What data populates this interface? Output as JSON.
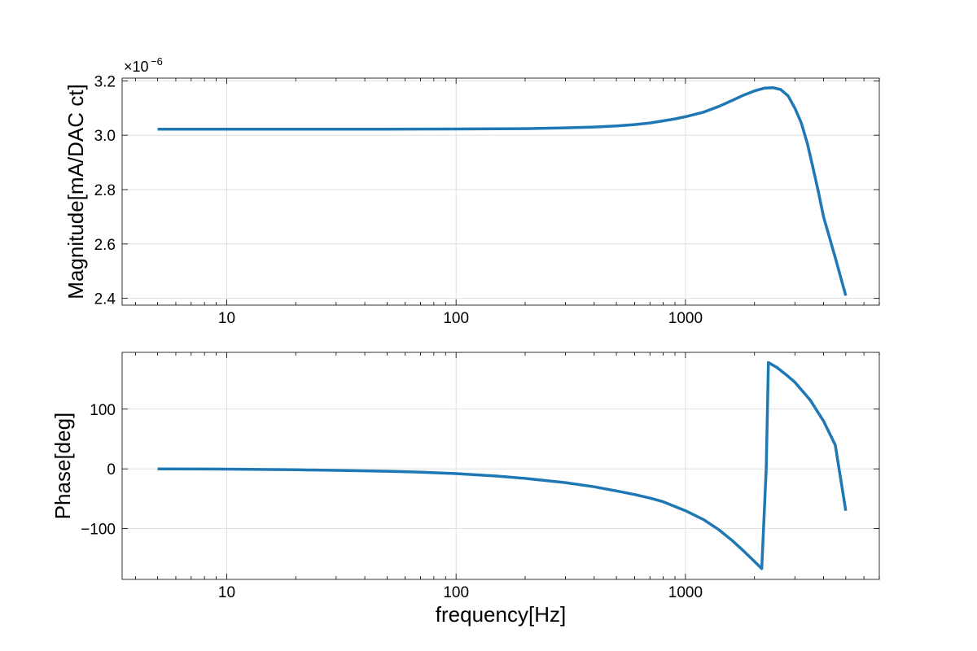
{
  "chart_data": [
    {
      "type": "line",
      "xscale": "log",
      "xlim": [
        3.5,
        7000
      ],
      "ylim": [
        2.375,
        3.21
      ],
      "ylabel": "Magnitude[mA/DAC ct]",
      "xlabel": "",
      "offset_text": "×10",
      "offset_exponent": "−6",
      "grid": true,
      "x_ticks": [
        {
          "value": 10,
          "label": "10"
        },
        {
          "value": 100,
          "label": "100"
        },
        {
          "value": 1000,
          "label": "1000"
        }
      ],
      "y_ticks": [
        {
          "value": 2.4,
          "label": "2.4"
        },
        {
          "value": 2.6,
          "label": "2.6"
        },
        {
          "value": 2.8,
          "label": "2.8"
        },
        {
          "value": 3.0,
          "label": "3.0"
        },
        {
          "value": 3.2,
          "label": "3.2"
        }
      ],
      "color": "#1f77b4",
      "series": [
        {
          "x": [
            5,
            10,
            20,
            50,
            100,
            200,
            300,
            400,
            500,
            600,
            700,
            800,
            900,
            1000,
            1200,
            1400,
            1600,
            1800,
            2000,
            2200,
            2400,
            2600,
            2800,
            3000,
            3200,
            3400,
            3600,
            3800,
            4000,
            4500,
            5000
          ],
          "y": [
            3.022,
            3.022,
            3.022,
            3.022,
            3.023,
            3.024,
            3.027,
            3.03,
            3.034,
            3.039,
            3.045,
            3.053,
            3.06,
            3.068,
            3.085,
            3.106,
            3.128,
            3.148,
            3.163,
            3.173,
            3.175,
            3.168,
            3.145,
            3.1,
            3.045,
            2.97,
            2.88,
            2.79,
            2.7,
            2.55,
            2.41
          ]
        }
      ]
    },
    {
      "type": "line",
      "xscale": "log",
      "xlim": [
        3.5,
        7000
      ],
      "ylim": [
        -185,
        195
      ],
      "ylabel": "Phase[deg]",
      "xlabel": "frequency[Hz]",
      "grid": true,
      "x_ticks": [
        {
          "value": 10,
          "label": "10"
        },
        {
          "value": 100,
          "label": "100"
        },
        {
          "value": 1000,
          "label": "1000"
        }
      ],
      "y_ticks": [
        {
          "value": -100,
          "label": "−100"
        },
        {
          "value": 0,
          "label": "0"
        },
        {
          "value": 100,
          "label": "100"
        }
      ],
      "color": "#1f77b4",
      "series": [
        {
          "x": [
            5,
            10,
            20,
            30,
            50,
            70,
            100,
            150,
            200,
            300,
            400,
            500,
            600,
            700,
            800,
            1000,
            1200,
            1400,
            1600,
            1800,
            2000,
            2150,
            2250,
            2300,
            2500,
            2800,
            3000,
            3500,
            4000,
            4500,
            5000
          ],
          "y": [
            0,
            -0.5,
            -1.5,
            -2.5,
            -4,
            -5.5,
            -8,
            -12,
            -16,
            -23,
            -30,
            -37,
            -43,
            -49,
            -55,
            -70,
            -85,
            -102,
            -120,
            -138,
            -155,
            -167,
            0,
            178,
            170,
            155,
            145,
            115,
            80,
            40,
            -70
          ]
        }
      ]
    }
  ]
}
